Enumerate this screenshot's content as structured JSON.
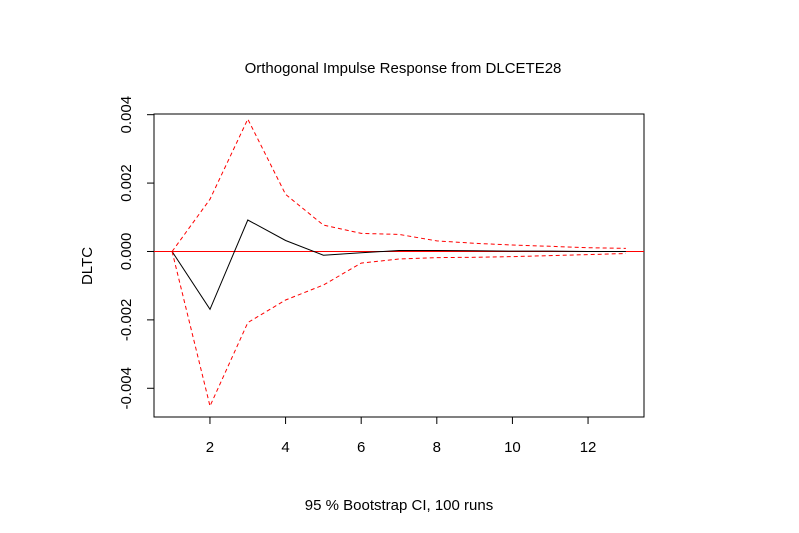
{
  "chart_data": {
    "type": "line",
    "title": "Orthogonal Impulse Response from DLCETE28",
    "xlabel": "95 % Bootstrap CI,  100 runs",
    "ylabel": "DLTC",
    "xlim": [
      0.52,
      13.48
    ],
    "ylim": [
      -0.00484,
      0.00402
    ],
    "x_ticks": [
      2,
      4,
      6,
      8,
      10,
      12
    ],
    "x_tick_labels": [
      "2",
      "4",
      "6",
      "8",
      "10",
      "12"
    ],
    "y_ticks": [
      -0.004,
      -0.002,
      0.0,
      0.002,
      0.004
    ],
    "y_tick_labels": [
      "-0.004",
      "-0.002",
      "0.000",
      "0.002",
      "0.004"
    ],
    "zero_line": 0,
    "grid": false,
    "x": [
      1,
      2,
      3,
      4,
      5,
      6,
      7,
      8,
      9,
      10,
      11,
      12,
      13
    ],
    "series": [
      {
        "role": "response",
        "color": "#000000",
        "dash": "solid",
        "values": [
          0.0,
          -0.00169,
          0.00092,
          0.00032,
          -0.00011,
          -4e-05,
          3e-05,
          3e-05,
          2e-05,
          1e-05,
          1e-05,
          0.0,
          0.0
        ]
      },
      {
        "role": "upper-ci",
        "color": "#ff0000",
        "dash": "dashed",
        "values": [
          0.0,
          0.00153,
          0.00387,
          0.00167,
          0.00077,
          0.00053,
          0.0005,
          0.00031,
          0.00024,
          0.00019,
          0.00015,
          0.00011,
          9e-05
        ]
      },
      {
        "role": "lower-ci",
        "color": "#ff0000",
        "dash": "dashed",
        "values": [
          0.0,
          -0.00452,
          -0.00208,
          -0.00142,
          -0.00098,
          -0.00034,
          -0.00022,
          -0.00018,
          -0.00017,
          -0.00015,
          -0.00012,
          -9e-05,
          -6e-05
        ]
      }
    ],
    "colors": {
      "zero_line": "#ff0000",
      "frame": "#000000"
    }
  }
}
